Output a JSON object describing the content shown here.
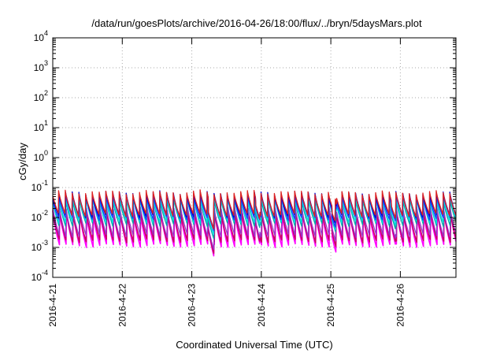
{
  "chart_data": {
    "type": "line",
    "title": "/data/run/goesPlots/archive/2016-04-26/18:00/flux/../bryn/5daysMars.plot",
    "xlabel": "Coordinated Universal Time (UTC)",
    "ylabel": "cGy/day",
    "yscale": "log",
    "ylim_exponents": [
      -4,
      4
    ],
    "y_ticks": [
      {
        "base": "10",
        "exp": "4"
      },
      {
        "base": "10",
        "exp": "3"
      },
      {
        "base": "10",
        "exp": "2"
      },
      {
        "base": "10",
        "exp": "1"
      },
      {
        "base": "10",
        "exp": "0"
      },
      {
        "base": "10",
        "exp": "-1"
      },
      {
        "base": "10",
        "exp": "-2"
      },
      {
        "base": "10",
        "exp": "-3"
      },
      {
        "base": "10",
        "exp": "-4"
      }
    ],
    "x_start": "2016-04-21",
    "x_range_days": [
      0,
      5.8
    ],
    "x_ticks": [
      {
        "label": "2016-4-21",
        "day": 0
      },
      {
        "label": "2016-4-22",
        "day": 1
      },
      {
        "label": "2016-4-23",
        "day": 2
      },
      {
        "label": "2016-4-24",
        "day": 3
      },
      {
        "label": "2016-4-25",
        "day": 4
      },
      {
        "label": "2016-4-26",
        "day": 5
      }
    ],
    "grid": true,
    "sawtooth_period_days": 0.097,
    "series": [
      {
        "color": "#ff00ff",
        "peak": 0.016,
        "trough": 0.0011
      },
      {
        "color": "#cc0066",
        "peak": 0.018,
        "trough": 0.0016
      },
      {
        "color": "#9933cc",
        "peak": 0.024,
        "trough": 0.0024
      },
      {
        "color": "#00aaaa",
        "peak": 0.045,
        "trough": 0.0055
      },
      {
        "color": "#00dddd",
        "peak": 0.05,
        "trough": 0.007
      },
      {
        "color": "#1a3dff",
        "peak": 0.06,
        "trough": 0.009
      },
      {
        "color": "#0000cc",
        "peak": 0.07,
        "trough": 0.011
      },
      {
        "color": "#dd2222",
        "peak": 0.075,
        "trough": 0.012
      }
    ]
  }
}
